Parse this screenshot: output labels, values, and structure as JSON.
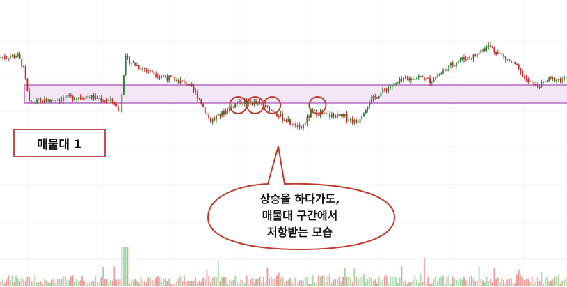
{
  "chart_data": {
    "type": "candlestick",
    "title": "",
    "xlabel": "",
    "ylabel": "",
    "grid": true,
    "volume_panel": true,
    "colors": {
      "up": "#2e7d32",
      "down": "#c62828",
      "zone_fill": "#f4e6f7",
      "zone_line": "#b46cc4",
      "marker": "#c0392b",
      "callout_border": "#c0392b"
    },
    "ylim": [
      0,
      100
    ],
    "price_path": [
      [
        0,
        79
      ],
      [
        3,
        80
      ],
      [
        4,
        71
      ],
      [
        5,
        46
      ],
      [
        10,
        49
      ],
      [
        15,
        51
      ],
      [
        20,
        47
      ],
      [
        21,
        38
      ],
      [
        22,
        78
      ],
      [
        24,
        73
      ],
      [
        28,
        66
      ],
      [
        33,
        60
      ],
      [
        35,
        50
      ],
      [
        37,
        33
      ],
      [
        39,
        38
      ],
      [
        42,
        47
      ],
      [
        45,
        46
      ],
      [
        48,
        41
      ],
      [
        50,
        35
      ],
      [
        53,
        27
      ],
      [
        55,
        40
      ],
      [
        58,
        37
      ],
      [
        61,
        36
      ],
      [
        63,
        32
      ],
      [
        65,
        46
      ],
      [
        68,
        56
      ],
      [
        71,
        62
      ],
      [
        74,
        65
      ],
      [
        76,
        62
      ],
      [
        78,
        68
      ],
      [
        81,
        77
      ],
      [
        84,
        80
      ],
      [
        86,
        88
      ],
      [
        88,
        82
      ],
      [
        91,
        73
      ],
      [
        93,
        62
      ],
      [
        95,
        58
      ],
      [
        97,
        63
      ],
      [
        100,
        63
      ]
    ],
    "resistance_zone": {
      "label": "매물대 1",
      "low": 46,
      "high": 59
    },
    "touch_points": [
      42,
      45,
      48,
      56
    ],
    "annotation": {
      "lines": [
        "상승을 하다가도,",
        "매물대 구간에서",
        "저항받는 모습"
      ]
    }
  }
}
